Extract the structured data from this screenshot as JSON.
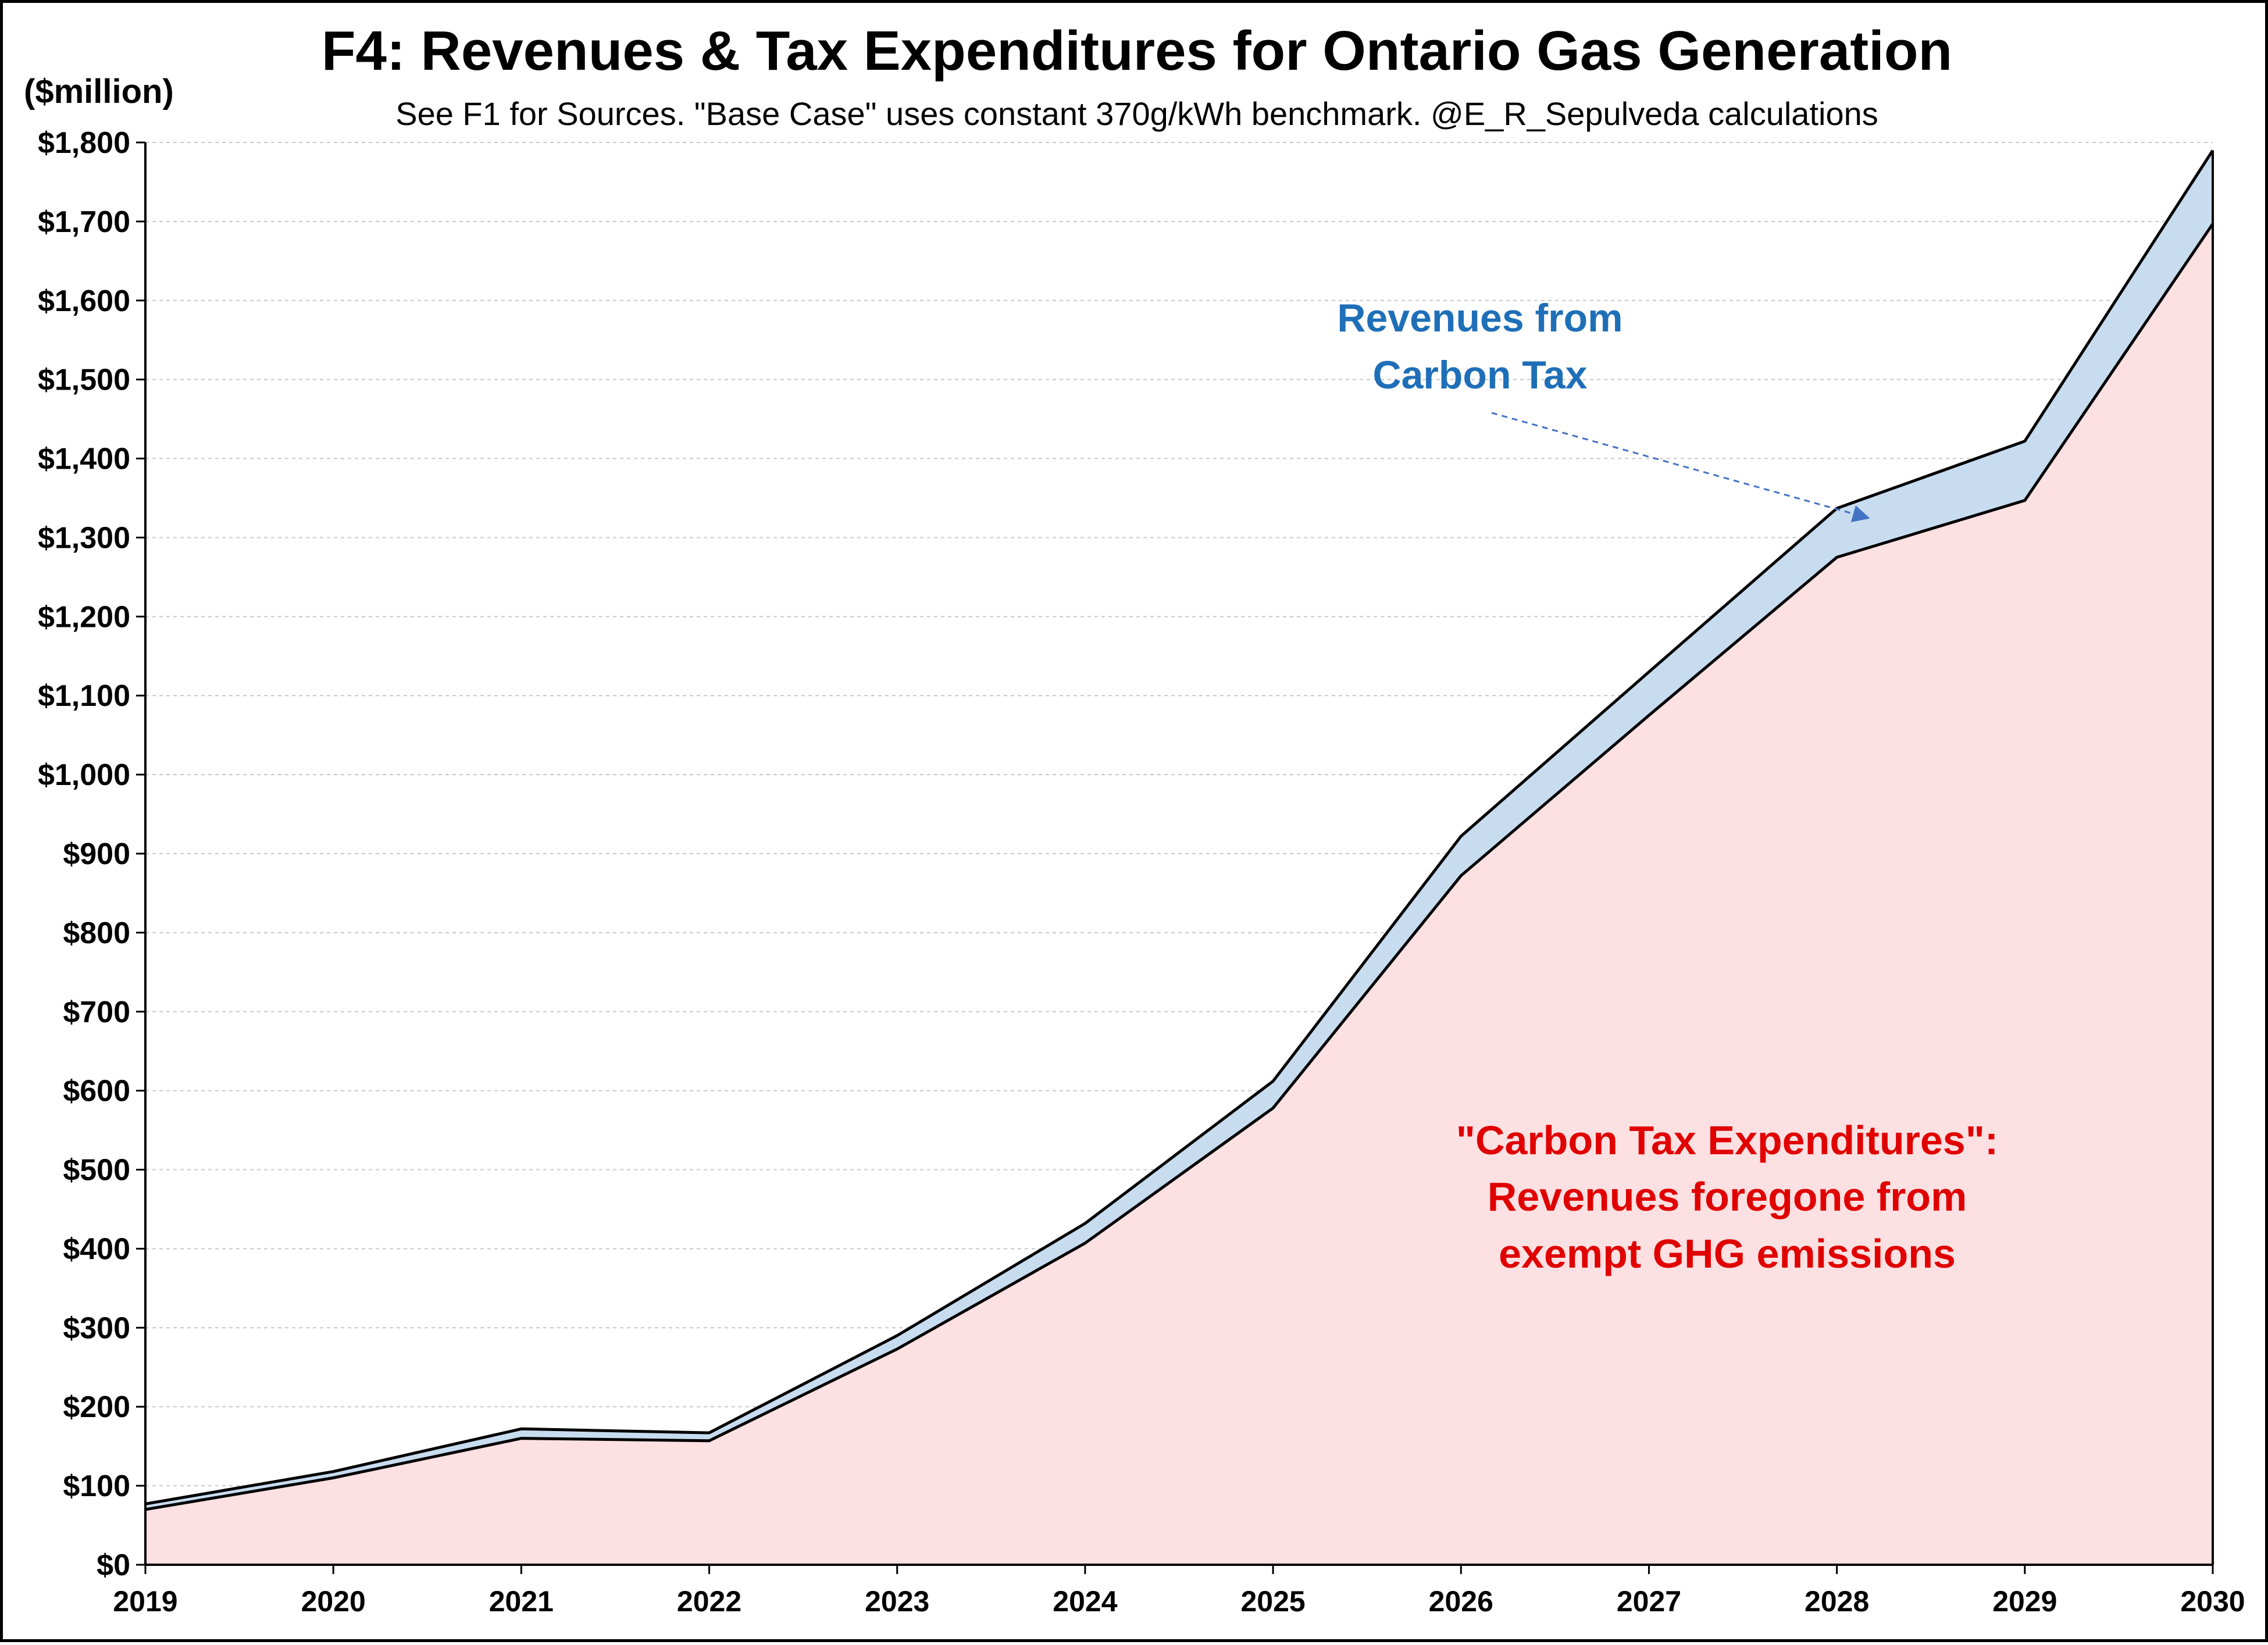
{
  "chart_data": {
    "type": "area",
    "title": "F4: Revenues & Tax Expenditures for Ontario Gas Generation",
    "subtitle": "See F1 for Sources. \"Base Case\" uses constant 370g/kWh benchmark. @E_R_Sepulveda calculations",
    "ylabel": "($million)",
    "xlabel": "",
    "x": [
      "2019",
      "2020",
      "2021",
      "2022",
      "2023",
      "2024",
      "2025",
      "2026",
      "2027",
      "2028",
      "2029",
      "2030"
    ],
    "ylim": [
      0,
      1800
    ],
    "y_ticks": [
      "$0",
      "$100",
      "$200",
      "$300",
      "$400",
      "$500",
      "$600",
      "$700",
      "$800",
      "$900",
      "$1,000",
      "$1,100",
      "$1,200",
      "$1,300",
      "$1,400",
      "$1,500",
      "$1,600",
      "$1,700",
      "$1,800"
    ],
    "grid": true,
    "stacked": true,
    "series": [
      {
        "name": "",
        "color": "#fde0e2",
        "values": [
          70,
          110,
          160,
          157,
          273,
          407,
          578,
          872,
          1075,
          1275,
          1347,
          1697
        ]
      },
      {
        "name": "",
        "color": "#c8dcf0",
        "values": [
          7,
          8,
          12,
          10,
          17,
          25,
          34,
          50,
          55,
          62,
          75,
          93
        ]
      }
    ],
    "annotations": {
      "revenues_line1": "Revenues from",
      "revenues_line2": "Carbon Tax",
      "revenues_color": "#1f6fb8",
      "expenditures_line1": "\"Carbon Tax Expenditures\":",
      "expenditures_line2": "Revenues foregone from",
      "expenditures_line3": "exempt GHG emissions",
      "expenditures_color": "#e00000"
    }
  }
}
